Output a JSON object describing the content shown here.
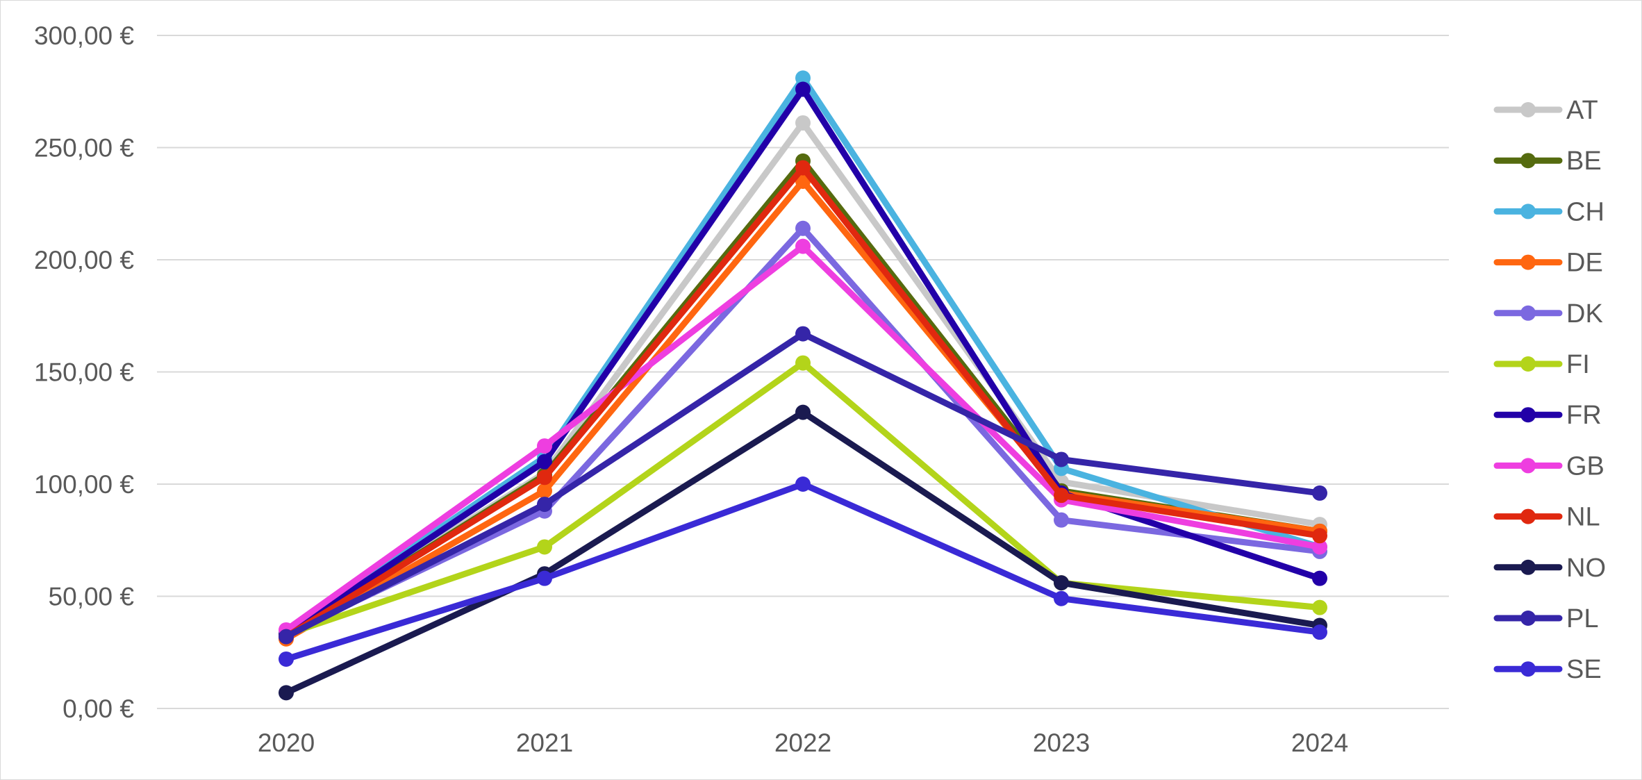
{
  "chart_data": {
    "type": "line",
    "title": "",
    "xlabel": "",
    "ylabel": "",
    "x": [
      "2020",
      "2021",
      "2022",
      "2023",
      "2024"
    ],
    "ylim": [
      0,
      300
    ],
    "y_ticks": [
      0,
      50,
      100,
      150,
      200,
      250,
      300
    ],
    "y_tick_labels": [
      "0,00 €",
      "50,00 €",
      "100,00 €",
      "150,00 €",
      "200,00 €",
      "250,00 €",
      "300,00 €"
    ],
    "grid": true,
    "legend_position": "right",
    "markers": true,
    "series": [
      {
        "name": "AT",
        "color": "#c8c8c8",
        "values": [
          33,
          105,
          261,
          101,
          82
        ]
      },
      {
        "name": "BE",
        "color": "#556b0f",
        "values": [
          32,
          104,
          244,
          97,
          79
        ]
      },
      {
        "name": "CH",
        "color": "#4ab3e0",
        "values": [
          34,
          112,
          281,
          107,
          72
        ]
      },
      {
        "name": "DE",
        "color": "#ff6610",
        "values": [
          31,
          97,
          235,
          96,
          79
        ]
      },
      {
        "name": "DK",
        "color": "#7b68e0",
        "values": [
          33,
          88,
          214,
          84,
          70
        ]
      },
      {
        "name": "FI",
        "color": "#b3d41a",
        "values": [
          33,
          72,
          154,
          56,
          45
        ]
      },
      {
        "name": "FR",
        "color": "#2200a8",
        "values": [
          33,
          110,
          276,
          96,
          58
        ]
      },
      {
        "name": "GB",
        "color": "#ee3ee0",
        "values": [
          35,
          117,
          206,
          93,
          72
        ]
      },
      {
        "name": "NL",
        "color": "#e0280f",
        "values": [
          32,
          103,
          241,
          95,
          77
        ]
      },
      {
        "name": "NO",
        "color": "#1a1a50",
        "values": [
          7,
          60,
          132,
          56,
          37
        ]
      },
      {
        "name": "PL",
        "color": "#3525a8",
        "values": [
          32,
          91,
          167,
          111,
          96
        ]
      },
      {
        "name": "SE",
        "color": "#3a2ad6",
        "values": [
          22,
          58,
          100,
          49,
          34
        ]
      }
    ]
  }
}
